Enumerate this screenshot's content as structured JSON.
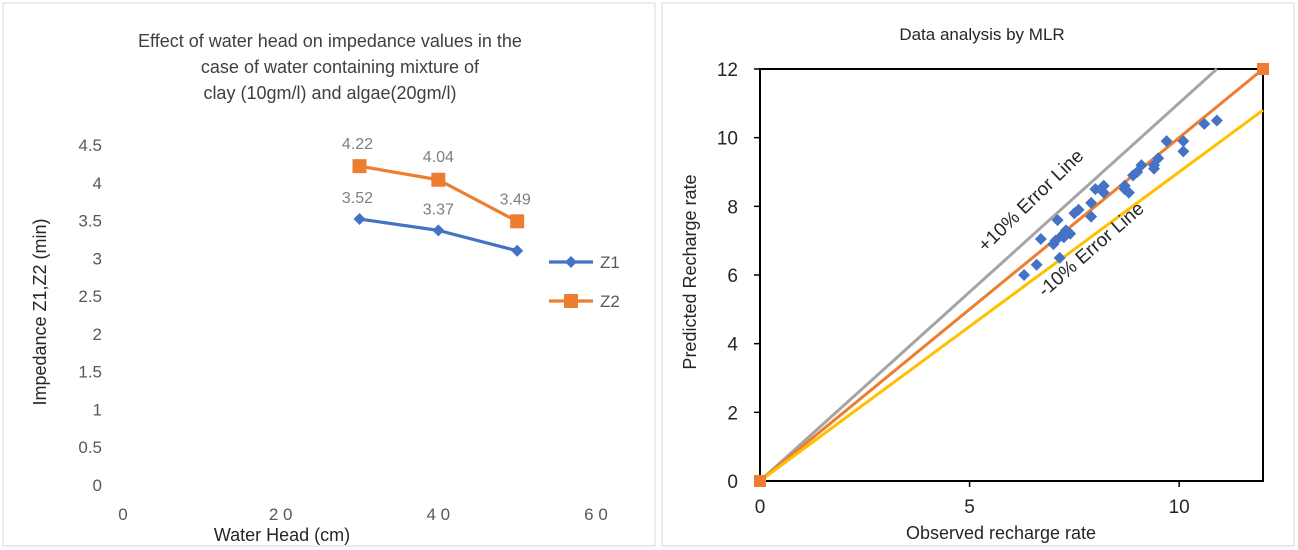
{
  "chart_data": [
    {
      "type": "line",
      "title_lines": [
        "Effect of water head on impedance values in the",
        "case of  water containing mixture of",
        "clay (10gm/l) and algae(20gm/l)"
      ],
      "xlabel": "Water Head (cm)",
      "ylabel": "Impedance Z1,Z2 (min)",
      "xlim": [
        0,
        60
      ],
      "ylim": [
        0,
        4.5
      ],
      "x_ticks": [
        0,
        20,
        40,
        60
      ],
      "x_tick_labels": [
        "0",
        "2 0",
        "4 0",
        "6 0"
      ],
      "y_ticks": [
        0,
        0.5,
        1,
        1.5,
        2,
        2.5,
        3,
        3.5,
        4,
        4.5
      ],
      "y_tick_labels": [
        "0",
        "0.5",
        "1",
        "1.5",
        "2",
        "2.5",
        "3",
        "3.5",
        "4",
        "4.5"
      ],
      "grid": false,
      "legend_position": "right",
      "series": [
        {
          "name": "Z1",
          "color": "#4472c4",
          "marker": "diamond",
          "x": [
            30,
            40,
            50
          ],
          "y": [
            3.52,
            3.37,
            3.1
          ],
          "data_labels": [
            "3.52",
            "3.37",
            ""
          ]
        },
        {
          "name": "Z2",
          "color": "#ed7d31",
          "marker": "square",
          "x": [
            30,
            40,
            50
          ],
          "y": [
            4.22,
            4.04,
            3.49
          ],
          "data_labels": [
            "4.22",
            "4.04",
            "3.49"
          ]
        }
      ]
    },
    {
      "type": "scatter",
      "title": "Data analysis by MLR",
      "xlabel": "Observed recharge rate",
      "ylabel": "Predicted Recharge rate",
      "xlim": [
        0,
        12
      ],
      "ylim": [
        0,
        12
      ],
      "x_ticks": [
        0,
        5,
        10
      ],
      "y_ticks": [
        0,
        2,
        4,
        6,
        8,
        10,
        12
      ],
      "grid": false,
      "annotations": [
        "+10% Error Line",
        "-10% Error Line"
      ],
      "lines": [
        {
          "role": "plus10",
          "color": "#a5a5a5",
          "points": [
            [
              0,
              0
            ],
            [
              10.9,
              12
            ]
          ]
        },
        {
          "role": "equality",
          "color": "#ed7d31",
          "points": [
            [
              0,
              0
            ],
            [
              12,
              12
            ]
          ]
        },
        {
          "role": "minus10",
          "color": "#ffc000",
          "points": [
            [
              0,
              0
            ],
            [
              12,
              10.8
            ]
          ]
        }
      ],
      "series": [
        {
          "color": "#4472c4",
          "marker": "diamond",
          "points": [
            [
              6.3,
              6.0
            ],
            [
              6.6,
              6.3
            ],
            [
              6.7,
              7.05
            ],
            [
              7.0,
              6.9
            ],
            [
              7.05,
              7.0
            ],
            [
              7.1,
              7.6
            ],
            [
              7.2,
              7.15
            ],
            [
              7.25,
              7.1
            ],
            [
              7.15,
              6.5
            ],
            [
              7.3,
              7.3
            ],
            [
              7.4,
              7.2
            ],
            [
              7.5,
              7.8
            ],
            [
              7.6,
              7.9
            ],
            [
              7.9,
              7.7
            ],
            [
              7.9,
              8.1
            ],
            [
              8.0,
              8.5
            ],
            [
              8.2,
              8.4
            ],
            [
              8.2,
              8.6
            ],
            [
              8.7,
              8.5
            ],
            [
              8.7,
              8.6
            ],
            [
              8.8,
              8.4
            ],
            [
              8.9,
              8.9
            ],
            [
              9.0,
              9.0
            ],
            [
              9.1,
              9.2
            ],
            [
              9.4,
              9.1
            ],
            [
              9.4,
              9.2
            ],
            [
              9.5,
              9.4
            ],
            [
              9.7,
              9.9
            ],
            [
              10.1,
              9.6
            ],
            [
              10.1,
              9.9
            ],
            [
              10.6,
              10.4
            ],
            [
              10.9,
              10.5
            ]
          ]
        },
        {
          "color": "#ed7d31",
          "marker": "square",
          "points": [
            [
              0,
              0
            ],
            [
              12,
              12
            ]
          ]
        }
      ]
    }
  ]
}
